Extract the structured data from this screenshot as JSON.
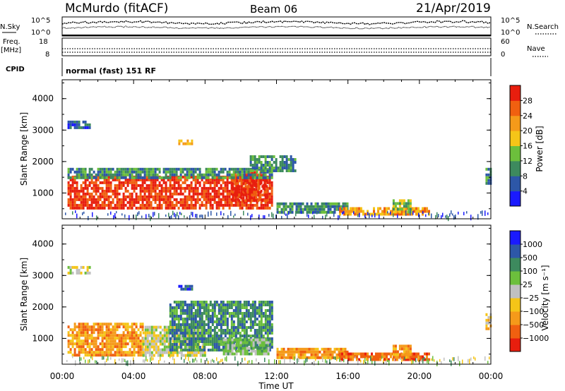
{
  "header": {
    "station": "McMurdo (fitACF)",
    "beam": "Beam 06",
    "date": "21/Apr/2019"
  },
  "noise_panel": {
    "left_label": "N.Sky",
    "right_label": "N.Search",
    "tick_top": "10^5",
    "tick_bottom": "10^0"
  },
  "freq_panel": {
    "left_label_1": "Freq.",
    "left_label_2": "[MHz]",
    "left_ticks": [
      "18",
      "8"
    ],
    "right_label": "Nave",
    "right_ticks": [
      "60",
      "0"
    ]
  },
  "cpid_panel": {
    "label": "CPID",
    "text": "normal (fast) 151 RF"
  },
  "colors": {
    "power_scale": [
      "#1a1aff",
      "#2d57a8",
      "#3d8a5e",
      "#6cbf3c",
      "#f5c518",
      "#f59a1a",
      "#f06010",
      "#e81e0e"
    ],
    "velocity_scale": [
      "#e81e0e",
      "#f06010",
      "#f59a1a",
      "#f5c518",
      "#c0c0c0",
      "#6cbf3c",
      "#3d8a5e",
      "#2d57a8",
      "#1a1aff"
    ]
  },
  "chart_data": [
    {
      "type": "heatmap",
      "name": "power",
      "xlabel": "",
      "ylabel": "Slant Range [km]",
      "x_ticks": [
        "00:00",
        "04:00",
        "08:00",
        "12:00",
        "16:00",
        "20:00",
        "00:00"
      ],
      "y_ticks": [
        1000,
        2000,
        3000,
        4000
      ],
      "ylim": [
        180,
        4600
      ],
      "xlim_hours": [
        0,
        24
      ],
      "colorbar_label": "Power [dB]",
      "colorbar_ticks": [
        4,
        8,
        12,
        16,
        20,
        24,
        28
      ],
      "colorbar_range": [
        0,
        32
      ],
      "regions": [
        {
          "t0": 0.3,
          "t1": 11.8,
          "r0": 500,
          "r1": 1550,
          "level": 29
        },
        {
          "t0": 9.5,
          "t1": 11.5,
          "r0": 800,
          "r1": 1700,
          "level": 30
        },
        {
          "t0": 0.3,
          "t1": 11.8,
          "r0": 1450,
          "r1": 1800,
          "level": 10
        },
        {
          "t0": 10.5,
          "t1": 13.0,
          "r0": 1700,
          "r1": 2200,
          "level": 9
        },
        {
          "t0": 12.0,
          "t1": 16.0,
          "r0": 350,
          "r1": 700,
          "level": 10
        },
        {
          "t0": 15.5,
          "t1": 20.5,
          "r0": 300,
          "r1": 550,
          "level": 22
        },
        {
          "t0": 18.5,
          "t1": 19.5,
          "r0": 400,
          "r1": 800,
          "level": 14
        },
        {
          "t0": 6.5,
          "t1": 7.3,
          "r0": 2550,
          "r1": 2700,
          "level": 20
        },
        {
          "t0": 0.3,
          "t1": 1.5,
          "r0": 3100,
          "r1": 3300,
          "level": 6
        },
        {
          "t0": 23.7,
          "t1": 24.0,
          "r0": 1300,
          "r1": 1800,
          "level": 10
        }
      ]
    },
    {
      "type": "heatmap",
      "name": "velocity",
      "xlabel": "Time UT",
      "ylabel": "Slant Range [km]",
      "x_ticks": [
        "00:00",
        "04:00",
        "08:00",
        "12:00",
        "16:00",
        "20:00",
        "00:00"
      ],
      "y_ticks": [
        1000,
        2000,
        3000,
        4000
      ],
      "ylim": [
        180,
        4600
      ],
      "xlim_hours": [
        0,
        24
      ],
      "colorbar_label": "Velocity [m s⁻¹]",
      "colorbar_ticks": [
        "1000",
        "500",
        "100",
        "25",
        "−25",
        "−100",
        "−500",
        "−1000"
      ],
      "regions": [
        {
          "t0": 0.3,
          "t1": 4.5,
          "r0": 500,
          "r1": 1500,
          "bin": 2
        },
        {
          "t0": 4.5,
          "t1": 8.0,
          "r0": 500,
          "r1": 1400,
          "bin": 4
        },
        {
          "t0": 6.0,
          "t1": 11.8,
          "r0": 600,
          "r1": 2200,
          "bin": 6
        },
        {
          "t0": 9.0,
          "t1": 11.5,
          "r0": 500,
          "r1": 1000,
          "bin": 5
        },
        {
          "t0": 12.0,
          "t1": 16.0,
          "r0": 350,
          "r1": 700,
          "bin": 2
        },
        {
          "t0": 15.5,
          "t1": 20.5,
          "r0": 300,
          "r1": 550,
          "bin": 1
        },
        {
          "t0": 18.5,
          "t1": 19.5,
          "r0": 400,
          "r1": 800,
          "bin": 2
        },
        {
          "t0": 6.5,
          "t1": 7.3,
          "r0": 2550,
          "r1": 2700,
          "bin": 7
        },
        {
          "t0": 0.3,
          "t1": 1.5,
          "r0": 3100,
          "r1": 3300,
          "bin": 4
        },
        {
          "t0": 23.7,
          "t1": 24.0,
          "r0": 1300,
          "r1": 1800,
          "bin": 3
        }
      ]
    }
  ]
}
